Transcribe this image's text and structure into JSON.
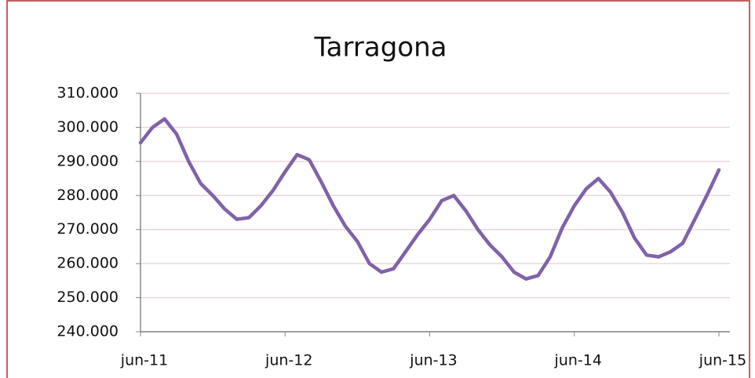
{
  "chart_data": {
    "type": "line",
    "title": "Tarragona",
    "categories": [
      "jun-11",
      null,
      null,
      null,
      null,
      null,
      null,
      null,
      null,
      null,
      null,
      null,
      "jun-12",
      null,
      null,
      null,
      null,
      null,
      null,
      null,
      null,
      null,
      null,
      null,
      "jun-13",
      null,
      null,
      null,
      null,
      null,
      null,
      null,
      null,
      null,
      null,
      null,
      "jun-14",
      null,
      null,
      null,
      null,
      null,
      null,
      null,
      null,
      null,
      null,
      null,
      "jun-15"
    ],
    "series": [
      {
        "name": "Tarragona",
        "color": "#7f62a8",
        "values": [
          295500,
          300000,
          302500,
          298000,
          290000,
          283500,
          280000,
          276000,
          273000,
          273500,
          277000,
          281500,
          287000,
          292000,
          290500,
          284000,
          277000,
          271000,
          266500,
          260000,
          257500,
          258500,
          263500,
          268500,
          273000,
          278500,
          280000,
          275500,
          270000,
          265500,
          262000,
          257500,
          255500,
          256500,
          262000,
          270500,
          277000,
          282000,
          285000,
          281000,
          275000,
          267500,
          262500,
          262000,
          263500,
          266000,
          273000,
          280000,
          287500
        ]
      }
    ],
    "ylim": [
      240000,
      310000
    ],
    "yticks": [
      {
        "value": 240000,
        "label": "240.000"
      },
      {
        "value": 250000,
        "label": "250.000"
      },
      {
        "value": 260000,
        "label": "260.000"
      },
      {
        "value": 270000,
        "label": "270.000"
      },
      {
        "value": 280000,
        "label": "280.000"
      },
      {
        "value": 290000,
        "label": "290.000"
      },
      {
        "value": 300000,
        "label": "300.000"
      },
      {
        "value": 310000,
        "label": "310.000"
      }
    ],
    "grid": true
  }
}
